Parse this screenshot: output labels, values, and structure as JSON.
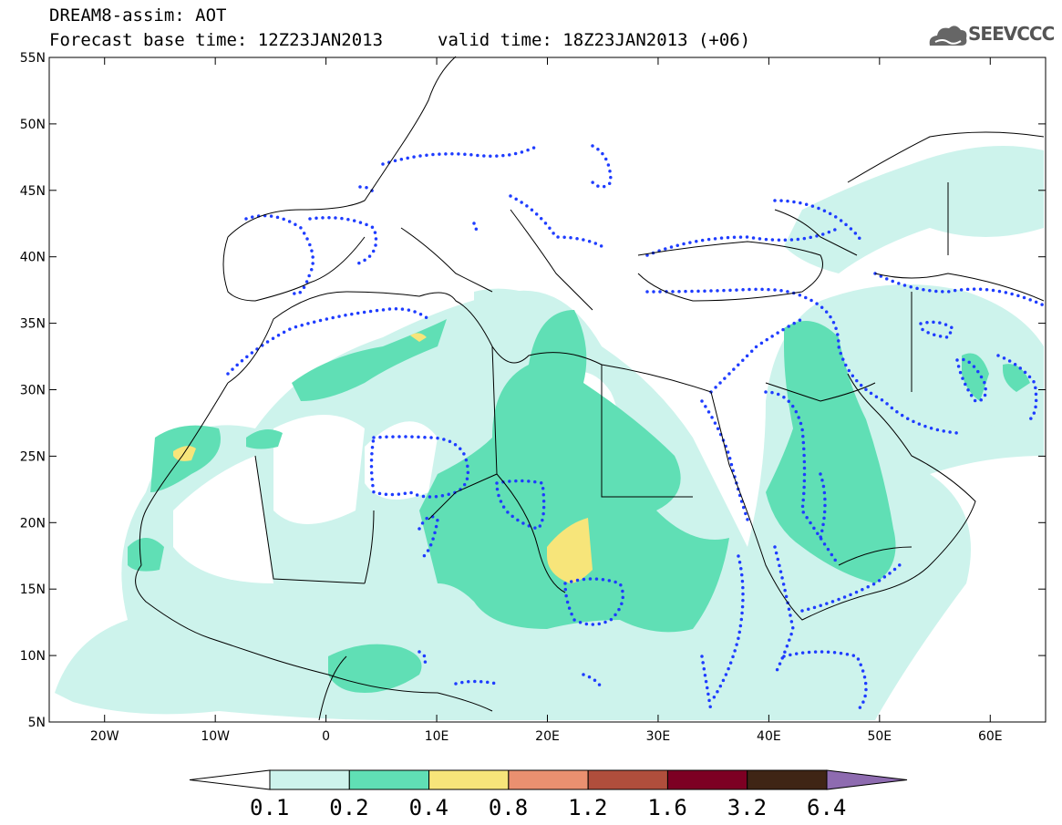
{
  "header": {
    "line1": "DREAM8-assim: AOT",
    "line2": "Forecast base time: 12Z23JAN2013",
    "valid": "valid time: 18Z23JAN2013 (+06)"
  },
  "logo": {
    "text": "SEEVCCC",
    "icon": "cloud-logo-icon"
  },
  "map": {
    "lat_labels": [
      "55N",
      "50N",
      "45N",
      "40N",
      "35N",
      "30N",
      "25N",
      "20N",
      "15N",
      "10N",
      "5N"
    ],
    "lon_labels": [
      "20W",
      "10W",
      "0",
      "10E",
      "20E",
      "30E",
      "40E",
      "50E",
      "60E"
    ],
    "lon_range": [
      -25,
      65
    ],
    "lat_range": [
      5,
      55
    ],
    "fill_colors": [
      "#cdf3ec",
      "#60dfb5",
      "#f7e57a"
    ],
    "dotted_color": "#1e3cff"
  },
  "legend": {
    "colors": [
      "#ffffff",
      "#cdf3ec",
      "#60dfb5",
      "#f7e57a",
      "#ea9070",
      "#b04e3c",
      "#7d0023",
      "#3f2515",
      "#8e6bb0"
    ],
    "ticks": [
      "0.1",
      "0.2",
      "0.4",
      "0.8",
      "1.2",
      "1.6",
      "3.2",
      "6.4"
    ]
  }
}
